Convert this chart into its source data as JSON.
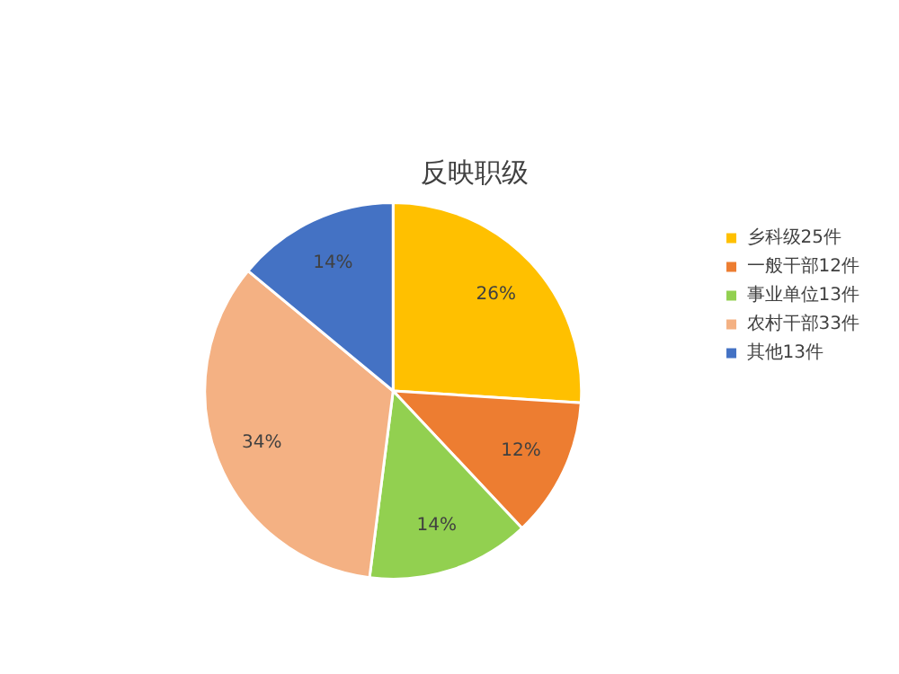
{
  "chart_data": {
    "type": "pie",
    "title": "反映职级",
    "categories": [
      "乡科级25件",
      "一般干部12件",
      "事业单位13件",
      "农村干部33件",
      "其他13件"
    ],
    "values": [
      26,
      12,
      14,
      34,
      14
    ],
    "value_labels": [
      "26%",
      "12%",
      "14%",
      "34%",
      "14%"
    ],
    "colors": [
      "#ffc000",
      "#ed7d31",
      "#92d050",
      "#f4b183",
      "#4472c4"
    ],
    "legend": "right"
  }
}
